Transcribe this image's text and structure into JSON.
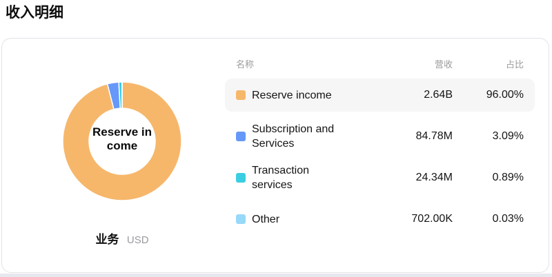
{
  "page": {
    "title": "收入明细"
  },
  "card": {
    "footer_label": "业务",
    "footer_unit": "USD"
  },
  "table": {
    "headers": [
      "名称",
      "营收",
      "占比"
    ],
    "rows": [
      {
        "name": "Reserve income",
        "revenue": "2.64B",
        "share": "96.00%",
        "color": "#F6B76B",
        "highlighted": true
      },
      {
        "name": "Subscription and Services",
        "revenue": "84.78M",
        "share": "3.09%",
        "color": "#6598F9",
        "highlighted": false
      },
      {
        "name": "Transaction services",
        "revenue": "24.34M",
        "share": "0.89%",
        "color": "#3BCEE2",
        "highlighted": false
      },
      {
        "name": "Other",
        "revenue": "702.00K",
        "share": "0.03%",
        "color": "#97D9F8",
        "highlighted": false
      }
    ]
  },
  "chart_data": {
    "type": "pie",
    "subtype": "donut",
    "title": "收入明细",
    "unit": "USD",
    "center_label": "Reserve income",
    "center_label_lines": [
      "Reserve in",
      "come"
    ],
    "categories": [
      "Reserve income",
      "Subscription and Services",
      "Transaction services",
      "Other"
    ],
    "values": [
      2640000000,
      84780000,
      24340000,
      702000
    ],
    "value_labels": [
      "2.64B",
      "84.78M",
      "24.34M",
      "702.00K"
    ],
    "shares_pct": [
      96.0,
      3.09,
      0.89,
      0.03
    ],
    "share_labels": [
      "96.00%",
      "3.09%",
      "0.89%",
      "0.03%"
    ],
    "colors": [
      "#F6B76B",
      "#6598F9",
      "#3BCEE2",
      "#97D9F8"
    ],
    "start_angle_deg": 0,
    "clockwise": true,
    "inner_radius_ratio": 0.56,
    "legend_position": "right-table"
  }
}
